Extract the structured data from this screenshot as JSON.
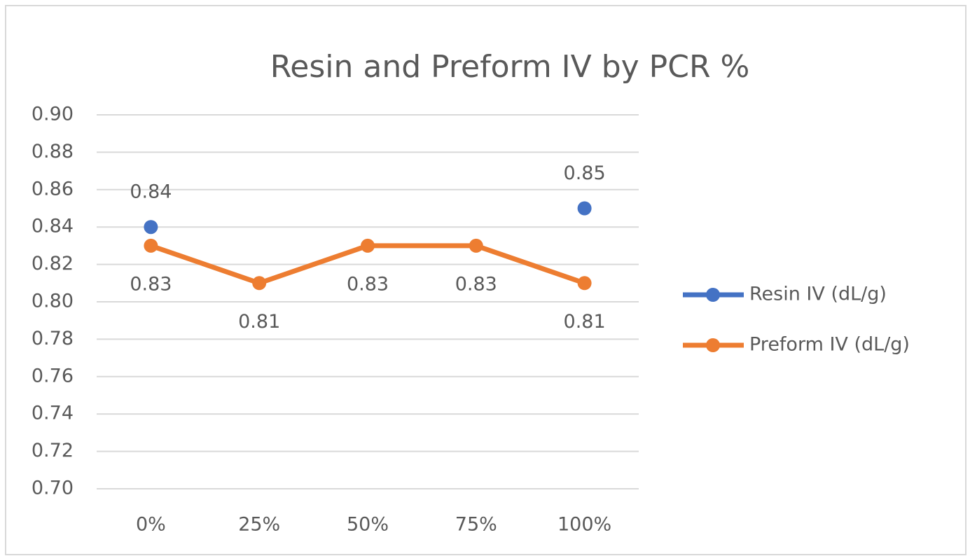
{
  "chart_data": {
    "type": "line",
    "title": "Resin and Preform IV by PCR %",
    "categories": [
      "0%",
      "25%",
      "50%",
      "75%",
      "100%"
    ],
    "series": [
      {
        "name": "Resin IV (dL/g)",
        "color": "#4472c4",
        "values": [
          0.84,
          null,
          null,
          null,
          0.85
        ]
      },
      {
        "name": "Preform IV (dL/g)",
        "color": "#ed7d31",
        "values": [
          0.83,
          0.81,
          0.83,
          0.83,
          0.81
        ]
      }
    ],
    "ylim": [
      0.7,
      0.9
    ],
    "yticks": [
      {
        "value": 0.7,
        "label": "0.70"
      },
      0.72,
      0.74,
      0.76,
      0.78,
      {
        "value": 0.8,
        "label": "0.80"
      },
      0.82,
      0.84,
      0.86,
      0.88,
      {
        "value": 0.9,
        "label": "0.90"
      }
    ],
    "grid": true,
    "legend": "right"
  }
}
